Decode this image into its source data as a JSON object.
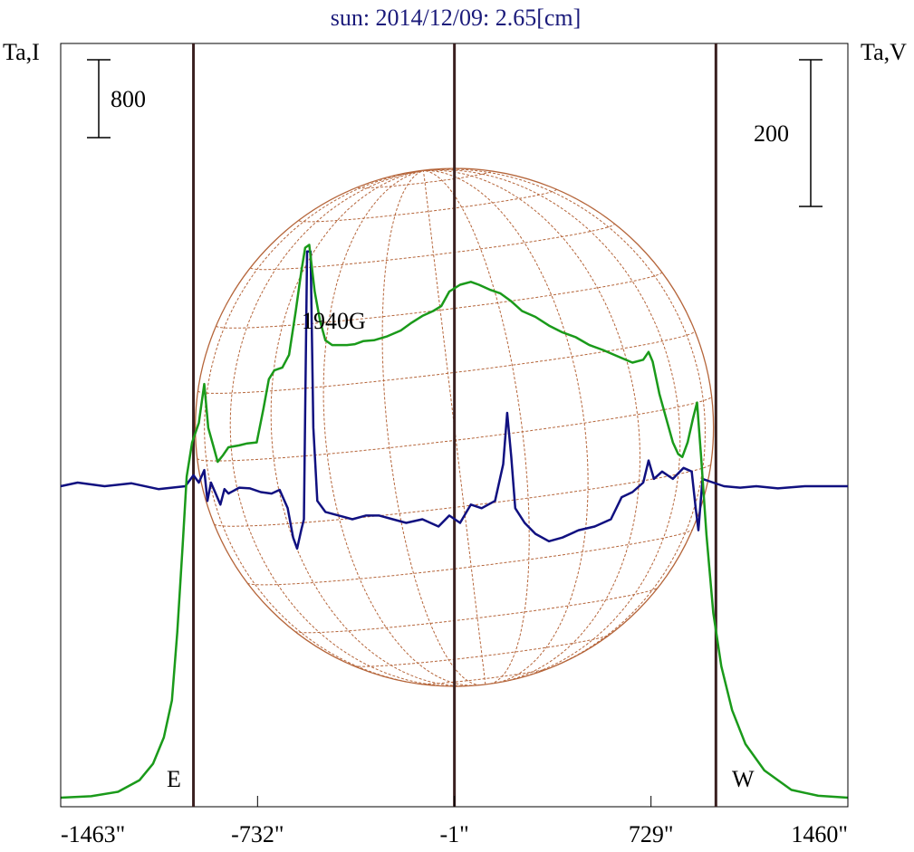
{
  "chart_data": {
    "type": "line",
    "title": "sun: 2014/12/09: 2.65[cm]",
    "left_axis_label": "Ta,I",
    "right_axis_label": "Ta,V",
    "scale_bar_left_label": "800",
    "scale_bar_right_label": "200",
    "x_tick_labels": [
      "-1463\"",
      "-732\"",
      "-1\"",
      "729\"",
      "1460\""
    ],
    "limb_labels": {
      "east": "E",
      "west": "W"
    },
    "annotation": "1940G",
    "colors": {
      "intensity": "#1a9a1a",
      "polarization": "#101080",
      "solar_grid": "#b5653a",
      "limb_lines": "#3a2020",
      "title": "#1a1a7a"
    },
    "series": [
      {
        "name": "Ta,I",
        "color": "#1a9a1a",
        "points": [
          [
            -1463,
            0
          ],
          [
            -1350,
            15
          ],
          [
            -1250,
            60
          ],
          [
            -1170,
            180
          ],
          [
            -1120,
            350
          ],
          [
            -1080,
            620
          ],
          [
            -1050,
            1000
          ],
          [
            -1030,
            1700
          ],
          [
            -1010,
            2600
          ],
          [
            -995,
            3300
          ],
          [
            -975,
            3650
          ],
          [
            -950,
            3850
          ],
          [
            -930,
            4250
          ],
          [
            -915,
            3800
          ],
          [
            -895,
            3600
          ],
          [
            -880,
            3450
          ],
          [
            -860,
            3520
          ],
          [
            -840,
            3600
          ],
          [
            -800,
            3620
          ],
          [
            -770,
            3640
          ],
          [
            -735,
            3650
          ],
          [
            -710,
            4000
          ],
          [
            -690,
            4300
          ],
          [
            -670,
            4390
          ],
          [
            -640,
            4420
          ],
          [
            -615,
            4550
          ],
          [
            -590,
            5000
          ],
          [
            -570,
            5400
          ],
          [
            -555,
            5650
          ],
          [
            -540,
            5680
          ],
          [
            -520,
            5200
          ],
          [
            -500,
            4900
          ],
          [
            -480,
            4700
          ],
          [
            -455,
            4650
          ],
          [
            -430,
            4650
          ],
          [
            -400,
            4650
          ],
          [
            -370,
            4660
          ],
          [
            -340,
            4690
          ],
          [
            -300,
            4700
          ],
          [
            -250,
            4740
          ],
          [
            -200,
            4800
          ],
          [
            -160,
            4880
          ],
          [
            -120,
            4950
          ],
          [
            -80,
            5000
          ],
          [
            -50,
            5050
          ],
          [
            -20,
            5200
          ],
          [
            20,
            5270
          ],
          [
            60,
            5300
          ],
          [
            90,
            5270
          ],
          [
            130,
            5220
          ],
          [
            170,
            5180
          ],
          [
            210,
            5100
          ],
          [
            250,
            5000
          ],
          [
            300,
            4940
          ],
          [
            350,
            4850
          ],
          [
            400,
            4780
          ],
          [
            450,
            4730
          ],
          [
            500,
            4650
          ],
          [
            550,
            4600
          ],
          [
            600,
            4540
          ],
          [
            660,
            4470
          ],
          [
            700,
            4500
          ],
          [
            720,
            4580
          ],
          [
            735,
            4480
          ],
          [
            760,
            4150
          ],
          [
            790,
            3850
          ],
          [
            810,
            3650
          ],
          [
            830,
            3530
          ],
          [
            845,
            3500
          ],
          [
            865,
            3650
          ],
          [
            885,
            3900
          ],
          [
            900,
            4060
          ],
          [
            915,
            3500
          ],
          [
            935,
            2700
          ],
          [
            960,
            1900
          ],
          [
            990,
            1350
          ],
          [
            1030,
            900
          ],
          [
            1080,
            550
          ],
          [
            1150,
            280
          ],
          [
            1250,
            80
          ],
          [
            1350,
            20
          ],
          [
            1460,
            0
          ]
        ]
      },
      {
        "name": "Ta,V",
        "color": "#101080",
        "points": [
          [
            -1463,
            0
          ],
          [
            -1400,
            5
          ],
          [
            -1300,
            0
          ],
          [
            -1200,
            4
          ],
          [
            -1100,
            -4
          ],
          [
            -1000,
            0
          ],
          [
            -970,
            15
          ],
          [
            -950,
            5
          ],
          [
            -930,
            22
          ],
          [
            -918,
            -20
          ],
          [
            -905,
            5
          ],
          [
            -890,
            -8
          ],
          [
            -870,
            -25
          ],
          [
            -855,
            -4
          ],
          [
            -840,
            -10
          ],
          [
            -800,
            -2
          ],
          [
            -760,
            -3
          ],
          [
            -720,
            -8
          ],
          [
            -680,
            -10
          ],
          [
            -650,
            -5
          ],
          [
            -620,
            -30
          ],
          [
            -600,
            -70
          ],
          [
            -585,
            -85
          ],
          [
            -570,
            -60
          ],
          [
            -560,
            -45
          ],
          [
            -548,
            320
          ],
          [
            -535,
            320
          ],
          [
            -525,
            80
          ],
          [
            -510,
            -20
          ],
          [
            -480,
            -35
          ],
          [
            -430,
            -40
          ],
          [
            -380,
            -45
          ],
          [
            -330,
            -40
          ],
          [
            -280,
            -40
          ],
          [
            -230,
            -45
          ],
          [
            -180,
            -50
          ],
          [
            -120,
            -45
          ],
          [
            -60,
            -55
          ],
          [
            -20,
            -40
          ],
          [
            20,
            -50
          ],
          [
            60,
            -25
          ],
          [
            100,
            -30
          ],
          [
            150,
            -20
          ],
          [
            180,
            30
          ],
          [
            195,
            100
          ],
          [
            210,
            40
          ],
          [
            225,
            -30
          ],
          [
            260,
            -50
          ],
          [
            300,
            -65
          ],
          [
            350,
            -75
          ],
          [
            400,
            -70
          ],
          [
            460,
            -60
          ],
          [
            520,
            -55
          ],
          [
            580,
            -45
          ],
          [
            620,
            -15
          ],
          [
            660,
            -8
          ],
          [
            700,
            5
          ],
          [
            720,
            35
          ],
          [
            740,
            10
          ],
          [
            770,
            20
          ],
          [
            810,
            10
          ],
          [
            850,
            25
          ],
          [
            880,
            20
          ],
          [
            895,
            -30
          ],
          [
            905,
            -60
          ],
          [
            920,
            10
          ],
          [
            960,
            5
          ],
          [
            1000,
            0
          ],
          [
            1060,
            -2
          ],
          [
            1120,
            0
          ],
          [
            1200,
            -3
          ],
          [
            1300,
            0
          ],
          [
            1400,
            0
          ],
          [
            1460,
            0
          ]
        ]
      }
    ],
    "xlim": [
      -1463,
      1460
    ],
    "limb_x": [
      -970,
      -1,
      970
    ],
    "left_scale_bar_value": 800,
    "right_scale_bar_value": 200
  }
}
